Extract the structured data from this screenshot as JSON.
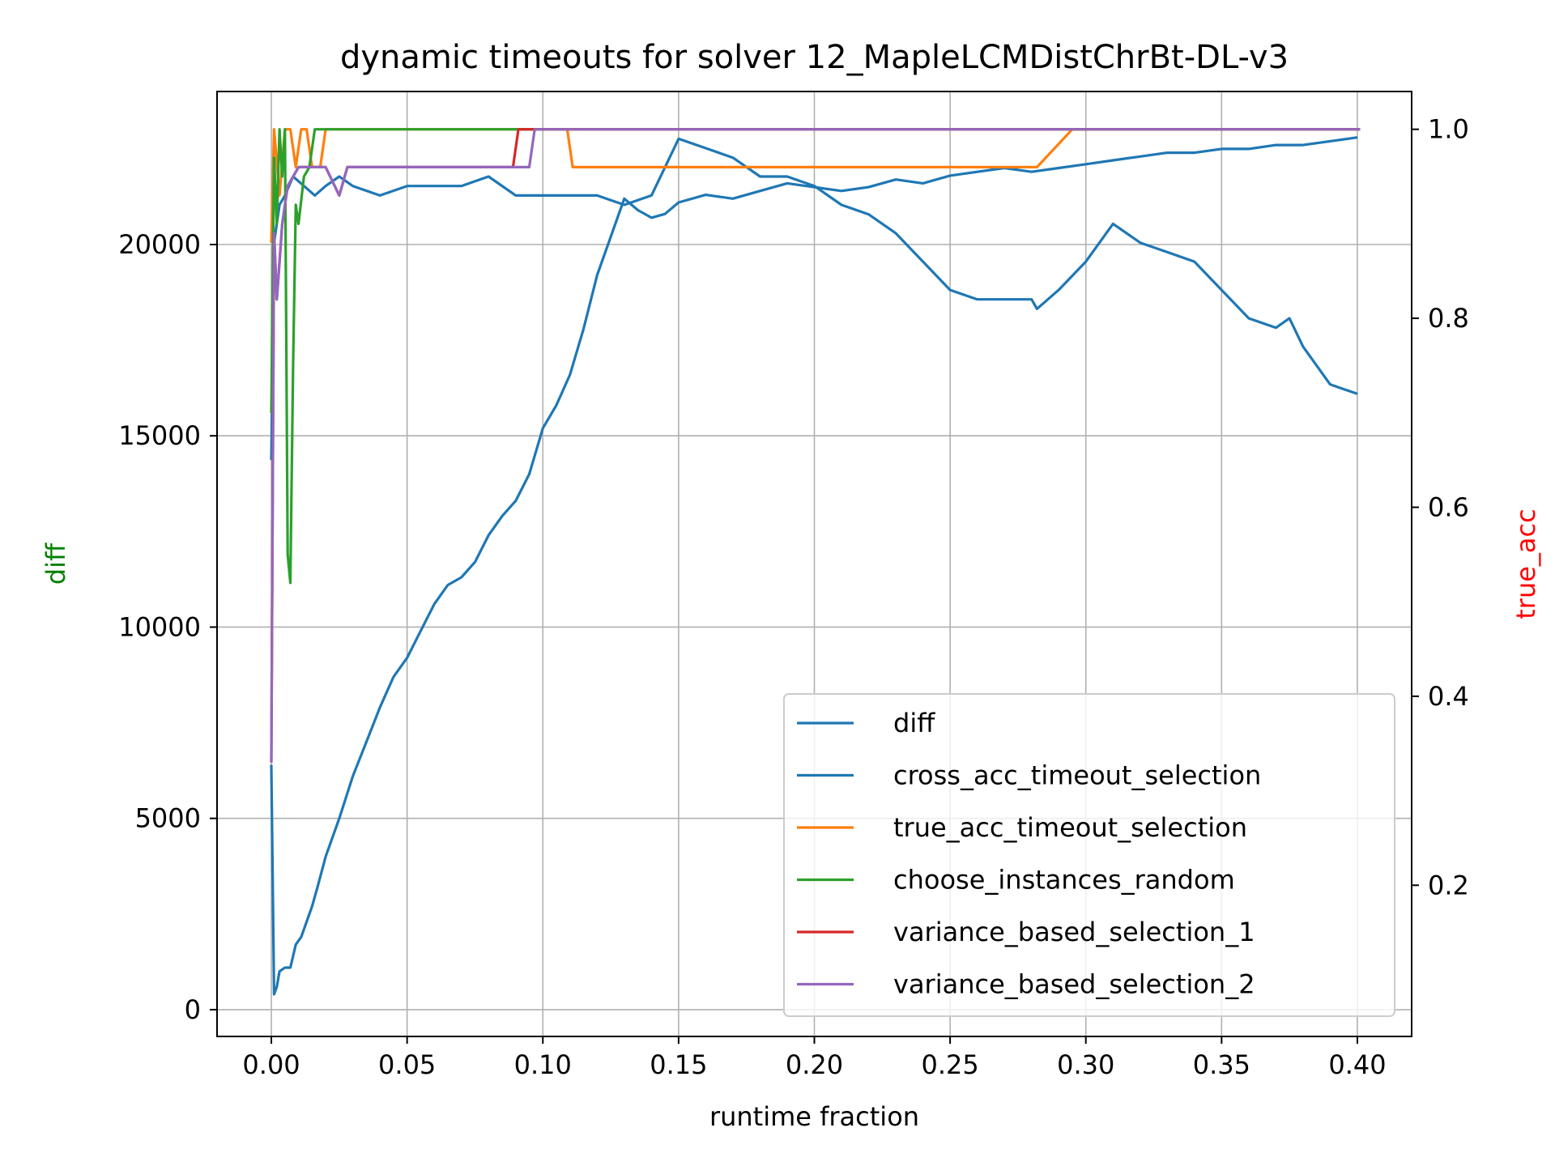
{
  "chart_data": {
    "type": "line",
    "title": "dynamic timeouts for solver 12_MapleLCMDistChrBt-DL-v3",
    "xlabel": "runtime fraction",
    "ylabel_left": "diff",
    "ylabel_right": "true_acc",
    "xlim": [
      -0.02,
      0.42
    ],
    "ylim_left": [
      -700,
      24000
    ],
    "ylim_right": [
      0.04,
      1.04
    ],
    "xticks": [
      0.0,
      0.05,
      0.1,
      0.15,
      0.2,
      0.25,
      0.3,
      0.35,
      0.4
    ],
    "xtick_labels": [
      "0.00",
      "0.05",
      "0.10",
      "0.15",
      "0.20",
      "0.25",
      "0.30",
      "0.35",
      "0.40"
    ],
    "yticks_left": [
      0,
      5000,
      10000,
      15000,
      20000
    ],
    "ytick_labels_left": [
      "0",
      "5000",
      "10000",
      "15000",
      "20000"
    ],
    "yticks_right": [
      0.2,
      0.4,
      0.6,
      0.8,
      1.0
    ],
    "ytick_labels_right": [
      "0.2",
      "0.4",
      "0.6",
      "0.8",
      "1.0"
    ],
    "grid": true,
    "legend_location": "lower-right",
    "colors": {
      "diff": "#1f77b4",
      "cross_acc_timeout_selection": "#1f77b4",
      "true_acc_timeout_selection": "#ff7f0e",
      "choose_instances_random": "#2ca02c",
      "variance_based_selection_1": "#d62728",
      "variance_based_selection_2": "#9467bd",
      "ylabel_left": "#008000",
      "ylabel_right": "#ff0000"
    },
    "series": [
      {
        "name": "diff",
        "axis": "left",
        "x": [
          0.0,
          0.001,
          0.002,
          0.003,
          0.005,
          0.007,
          0.009,
          0.011,
          0.013,
          0.015,
          0.017,
          0.02,
          0.025,
          0.03,
          0.035,
          0.04,
          0.045,
          0.05,
          0.055,
          0.06,
          0.065,
          0.07,
          0.075,
          0.08,
          0.085,
          0.09,
          0.095,
          0.1,
          0.105,
          0.11,
          0.115,
          0.12,
          0.125,
          0.13,
          0.135,
          0.14,
          0.145,
          0.15,
          0.16,
          0.17,
          0.18,
          0.19,
          0.2,
          0.21,
          0.22,
          0.23,
          0.24,
          0.25,
          0.26,
          0.27,
          0.28,
          0.29,
          0.3,
          0.31,
          0.32,
          0.33,
          0.34,
          0.35,
          0.36,
          0.37,
          0.38,
          0.39,
          0.4
        ],
        "values": [
          6400,
          400,
          600,
          1000,
          1100,
          1100,
          1700,
          1900,
          2300,
          2700,
          3200,
          4000,
          5000,
          6100,
          7000,
          7900,
          8700,
          9200,
          9900,
          10600,
          11100,
          11300,
          11700,
          12400,
          12900,
          13300,
          14000,
          15200,
          15800,
          16600,
          17800,
          19200,
          20200,
          21200,
          20900,
          20700,
          20800,
          21100,
          21300,
          21200,
          21400,
          21600,
          21500,
          21400,
          21500,
          21700,
          21600,
          21800,
          21900,
          22000,
          21900,
          22000,
          22100,
          22200,
          22300,
          22400,
          22400,
          22500,
          22500,
          22600,
          22600,
          22700,
          22800
        ]
      },
      {
        "name": "cross_acc_timeout_selection",
        "axis": "right",
        "x": [
          0.0,
          0.001,
          0.003,
          0.005,
          0.008,
          0.012,
          0.016,
          0.02,
          0.025,
          0.03,
          0.04,
          0.05,
          0.06,
          0.07,
          0.08,
          0.09,
          0.1,
          0.11,
          0.12,
          0.13,
          0.14,
          0.15,
          0.16,
          0.17,
          0.18,
          0.19,
          0.2,
          0.21,
          0.22,
          0.23,
          0.24,
          0.25,
          0.26,
          0.27,
          0.28,
          0.282,
          0.29,
          0.3,
          0.31,
          0.32,
          0.33,
          0.34,
          0.35,
          0.36,
          0.37,
          0.375,
          0.38,
          0.39,
          0.4
        ],
        "values": [
          0.65,
          0.88,
          0.92,
          0.93,
          0.95,
          0.94,
          0.93,
          0.94,
          0.95,
          0.94,
          0.93,
          0.94,
          0.94,
          0.94,
          0.95,
          0.93,
          0.93,
          0.93,
          0.93,
          0.92,
          0.93,
          0.99,
          0.98,
          0.97,
          0.95,
          0.95,
          0.94,
          0.92,
          0.91,
          0.89,
          0.86,
          0.83,
          0.82,
          0.82,
          0.82,
          0.81,
          0.83,
          0.86,
          0.9,
          0.88,
          0.87,
          0.86,
          0.83,
          0.8,
          0.79,
          0.8,
          0.77,
          0.73,
          0.72
        ]
      },
      {
        "name": "true_acc_timeout_selection",
        "axis": "right",
        "x": [
          0.0,
          0.001,
          0.003,
          0.005,
          0.007,
          0.009,
          0.011,
          0.013,
          0.015,
          0.018,
          0.02,
          0.025,
          0.1,
          0.109,
          0.111,
          0.2,
          0.28,
          0.282,
          0.295,
          0.3,
          0.35,
          0.401
        ],
        "values": [
          0.88,
          1.0,
          0.93,
          1.0,
          1.0,
          0.96,
          1.0,
          1.0,
          0.96,
          0.96,
          1.0,
          1.0,
          1.0,
          1.0,
          0.96,
          0.96,
          0.96,
          0.96,
          1.0,
          1.0,
          1.0,
          1.0
        ]
      },
      {
        "name": "choose_instances_random",
        "axis": "right",
        "x": [
          0.0,
          0.001,
          0.002,
          0.003,
          0.004,
          0.005,
          0.006,
          0.007,
          0.008,
          0.009,
          0.01,
          0.012,
          0.014,
          0.016,
          0.05,
          0.1,
          0.2,
          0.3,
          0.401
        ],
        "values": [
          0.7,
          0.97,
          0.9,
          1.0,
          0.95,
          1.0,
          0.55,
          0.52,
          0.75,
          0.92,
          0.9,
          0.95,
          0.96,
          1.0,
          1.0,
          1.0,
          1.0,
          1.0,
          1.0
        ]
      },
      {
        "name": "variance_based_selection_1",
        "axis": "right",
        "x": [
          0.0,
          0.001,
          0.002,
          0.004,
          0.006,
          0.01,
          0.02,
          0.025,
          0.028,
          0.05,
          0.089,
          0.091,
          0.1,
          0.2,
          0.3,
          0.401
        ],
        "values": [
          0.33,
          0.89,
          0.82,
          0.9,
          0.94,
          0.96,
          0.96,
          0.93,
          0.96,
          0.96,
          0.96,
          1.0,
          1.0,
          1.0,
          1.0,
          1.0
        ]
      },
      {
        "name": "variance_based_selection_2",
        "axis": "right",
        "x": [
          0.0,
          0.001,
          0.002,
          0.004,
          0.006,
          0.01,
          0.02,
          0.025,
          0.028,
          0.05,
          0.095,
          0.097,
          0.1,
          0.2,
          0.3,
          0.401
        ],
        "values": [
          0.33,
          0.89,
          0.82,
          0.9,
          0.94,
          0.96,
          0.96,
          0.93,
          0.96,
          0.96,
          0.96,
          1.0,
          1.0,
          1.0,
          1.0,
          1.0
        ]
      }
    ]
  }
}
